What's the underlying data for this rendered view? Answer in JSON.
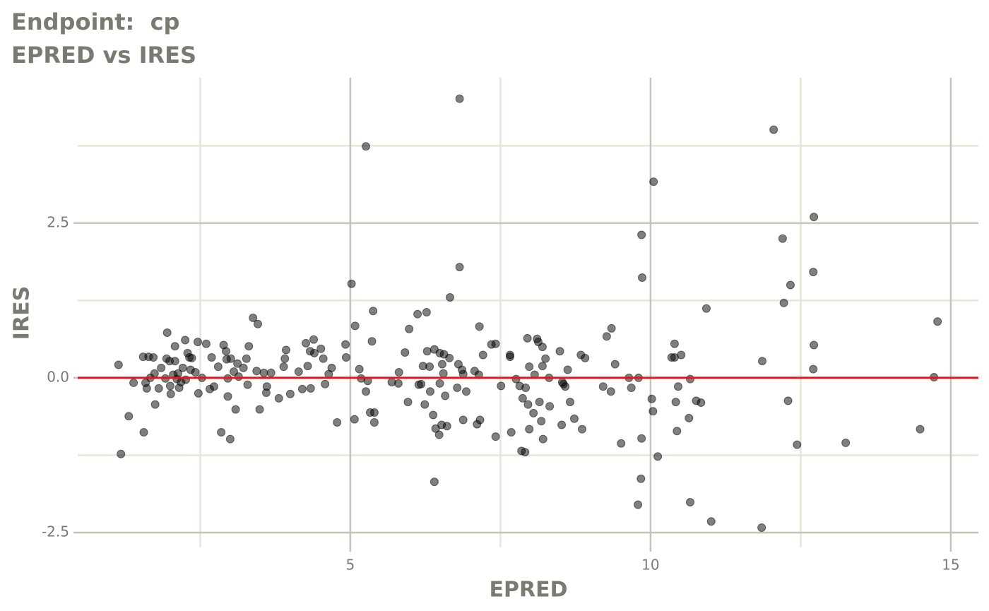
{
  "chart_data": {
    "type": "scatter",
    "title": "Endpoint:  cp",
    "subtitle": "EPRED vs IRES",
    "x_label": "EPRED",
    "y_label": "IRES",
    "xlim": [
      0.46,
      15.46
    ],
    "ylim": [
      -2.74,
      4.85
    ],
    "xticks": [
      5,
      10,
      15
    ],
    "yticks": [
      -2.5,
      {
        "value": 0,
        "label": "0.0"
      },
      2.5
    ],
    "xminor": [
      2.5,
      7.5,
      12.5
    ],
    "yminor": [
      -1.25,
      1.25,
      3.75
    ],
    "grid": true,
    "color": "#000000",
    "alpha": 0.5,
    "reference_line": {
      "y": 0,
      "color": "#e8141a"
    },
    "x": [
      1.14,
      1.18,
      1.31,
      1.39,
      1.55,
      1.56,
      1.59,
      1.61,
      1.64,
      1.67,
      1.72,
      1.74,
      1.75,
      1.81,
      1.85,
      1.92,
      1.94,
      1.95,
      1.99,
      2.0,
      2.01,
      2.05,
      2.08,
      2.08,
      2.11,
      2.13,
      2.15,
      2.18,
      2.21,
      2.25,
      2.26,
      2.29,
      2.32,
      2.34,
      2.36,
      2.42,
      2.46,
      2.47,
      2.53,
      2.6,
      2.66,
      2.69,
      2.73,
      2.8,
      2.85,
      2.89,
      2.93,
      2.94,
      2.96,
      2.96,
      3.0,
      3.01,
      3.06,
      3.09,
      3.12,
      3.14,
      3.22,
      3.27,
      3.29,
      3.31,
      3.38,
      3.44,
      3.46,
      3.49,
      3.56,
      3.6,
      3.61,
      3.68,
      3.81,
      3.89,
      3.91,
      3.93,
      4.0,
      4.14,
      4.2,
      4.26,
      4.29,
      4.33,
      4.34,
      4.39,
      4.4,
      4.51,
      4.55,
      4.58,
      4.64,
      4.69,
      4.78,
      4.92,
      4.93,
      5.02,
      5.07,
      5.08,
      5.15,
      5.18,
      5.26,
      5.26,
      5.29,
      5.33,
      5.36,
      5.38,
      5.4,
      5.4,
      5.69,
      5.8,
      5.81,
      5.91,
      5.96,
      5.98,
      6.12,
      6.14,
      6.18,
      6.21,
      6.24,
      6.27,
      6.28,
      6.32,
      6.33,
      6.38,
      6.4,
      6.4,
      6.42,
      6.48,
      6.49,
      6.49,
      6.52,
      6.53,
      6.55,
      6.56,
      6.58,
      6.61,
      6.65,
      6.66,
      6.78,
      6.8,
      6.82,
      6.82,
      6.86,
      6.88,
      6.88,
      6.93,
      7.07,
      7.11,
      7.14,
      7.15,
      7.16,
      7.21,
      7.35,
      7.42,
      7.42,
      7.51,
      7.66,
      7.66,
      7.68,
      7.76,
      7.82,
      7.85,
      7.87,
      7.91,
      7.92,
      7.95,
      7.96,
      7.98,
      7.98,
      8.05,
      8.07,
      8.11,
      8.13,
      8.15,
      8.18,
      8.2,
      8.2,
      8.21,
      8.25,
      8.31,
      8.32,
      8.49,
      8.52,
      8.53,
      8.55,
      8.58,
      8.62,
      8.66,
      8.73,
      8.84,
      8.86,
      8.91,
      9.21,
      9.27,
      9.34,
      9.35,
      9.41,
      9.51,
      9.64,
      9.68,
      9.79,
      9.8,
      9.84,
      9.85,
      9.85,
      9.86,
      10.02,
      10.04,
      10.05,
      10.12,
      10.35,
      10.4,
      10.4,
      10.42,
      10.44,
      10.46,
      10.51,
      10.64,
      10.66,
      10.66,
      10.76,
      10.84,
      10.93,
      11.01,
      11.85,
      11.86,
      12.05,
      12.2,
      12.22,
      12.29,
      12.33,
      12.44,
      12.71,
      12.72,
      12.72,
      12.71,
      13.25,
      14.49,
      14.72,
      14.78
    ],
    "y": [
      0.21,
      -1.23,
      -0.62,
      -0.08,
      0.34,
      -0.88,
      -0.08,
      -0.17,
      0.34,
      0.0,
      0.33,
      0.07,
      -0.43,
      -0.17,
      0.16,
      -0.01,
      0.31,
      0.73,
      0.27,
      -0.13,
      -0.26,
      0.05,
      0.51,
      0.27,
      -0.02,
      0.07,
      -0.16,
      -0.07,
      0.16,
      0.61,
      -0.03,
      0.4,
      0.33,
      0.13,
      0.32,
      0.09,
      0.58,
      -0.25,
      0.0,
      0.55,
      -0.18,
      0.33,
      -0.14,
      0.18,
      -0.88,
      0.53,
      0.43,
      0.3,
      -0.01,
      -0.3,
      -0.99,
      0.31,
      0.1,
      -0.51,
      0.23,
      0.02,
      0.16,
      0.31,
      -0.11,
      0.51,
      0.97,
      0.11,
      0.87,
      -0.51,
      0.08,
      -0.24,
      -0.14,
      0.08,
      -0.33,
      0.18,
      0.31,
      0.45,
      -0.26,
      0.1,
      -0.18,
      0.56,
      0.19,
      0.43,
      -0.17,
      0.62,
      0.4,
      0.47,
      0.31,
      -0.1,
      0.06,
      0.16,
      -0.72,
      0.54,
      0.33,
      1.52,
      -0.67,
      0.84,
      0.14,
      -0.01,
      3.74,
      -0.22,
      -0.05,
      -0.56,
      0.59,
      1.08,
      -0.56,
      -0.72,
      -0.07,
      -0.09,
      0.09,
      0.41,
      -0.39,
      0.79,
      1.03,
      -0.11,
      -0.1,
      0.19,
      -0.43,
      1.06,
      0.43,
      0.18,
      -0.22,
      -0.6,
      -1.68,
      0.46,
      -0.82,
      -0.92,
      0.4,
      -0.09,
      -0.76,
      0.22,
      0.07,
      0.38,
      -0.29,
      -0.78,
      0.32,
      1.3,
      -0.16,
      0.22,
      4.51,
      1.79,
      0.13,
      0.06,
      -0.68,
      -0.22,
      0.11,
      -0.75,
      0.05,
      0.83,
      -0.68,
      0.37,
      0.54,
      0.55,
      -0.95,
      -0.13,
      0.37,
      0.34,
      -0.88,
      -0.02,
      -0.13,
      -1.18,
      -0.33,
      -1.2,
      -0.16,
      0.64,
      -0.43,
      0.18,
      -0.83,
      -0.57,
      0.05,
      0.63,
      0.58,
      -0.39,
      -0.7,
      0.5,
      0.19,
      -0.99,
      0.31,
      0.0,
      -0.46,
      0.43,
      -0.76,
      -0.07,
      -0.1,
      -0.14,
      0.13,
      -0.39,
      -0.66,
      0.37,
      -0.83,
      0.32,
      -0.14,
      0.67,
      -0.22,
      0.8,
      0.22,
      -1.06,
      0.0,
      -0.16,
      -2.05,
      0.0,
      -1.63,
      -0.98,
      2.31,
      1.62,
      -0.34,
      -0.54,
      3.17,
      -1.27,
      0.33,
      0.55,
      0.33,
      -0.39,
      -0.86,
      -0.14,
      0.37,
      -0.65,
      -0.02,
      -2.01,
      -0.37,
      -0.4,
      1.12,
      -2.32,
      -2.42,
      0.27,
      4.01,
      2.25,
      1.21,
      -0.37,
      1.5,
      -1.08,
      1.71,
      2.6,
      0.53,
      0.14,
      -1.05,
      -0.83,
      0.01,
      0.91
    ]
  }
}
